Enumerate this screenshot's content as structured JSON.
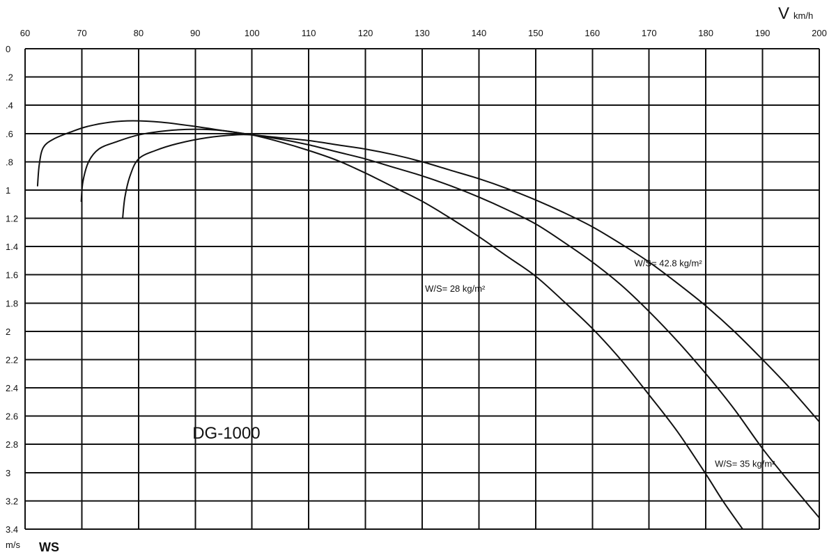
{
  "chart_data": {
    "type": "line",
    "title": "DG-1000",
    "xlabel": "V",
    "xunit": "km/h",
    "ylabel": "WS",
    "yunit": "m/s",
    "xlim": [
      60,
      200
    ],
    "ylim": [
      0,
      3.4
    ],
    "y_inverted": true,
    "grid": true,
    "x_ticks": [
      {
        "value": 60,
        "label": "60"
      },
      {
        "value": 70,
        "label": "70"
      },
      {
        "value": 80,
        "label": "80"
      },
      {
        "value": 90,
        "label": "90"
      },
      {
        "value": 100,
        "label": "100"
      },
      {
        "value": 110,
        "label": "110"
      },
      {
        "value": 120,
        "label": "120"
      },
      {
        "value": 130,
        "label": "130"
      },
      {
        "value": 140,
        "label": "140"
      },
      {
        "value": 150,
        "label": "150"
      },
      {
        "value": 160,
        "label": "160"
      },
      {
        "value": 170,
        "label": "170"
      },
      {
        "value": 180,
        "label": "180"
      },
      {
        "value": 190,
        "label": "190"
      },
      {
        "value": 200,
        "label": "200"
      }
    ],
    "y_ticks": [
      {
        "value": 0,
        "label": "0"
      },
      {
        "value": 0.2,
        "label": ".2"
      },
      {
        "value": 0.4,
        "label": ".4"
      },
      {
        "value": 0.6,
        "label": ".6"
      },
      {
        "value": 0.8,
        "label": ".8"
      },
      {
        "value": 1.0,
        "label": "1"
      },
      {
        "value": 1.2,
        "label": "1.2"
      },
      {
        "value": 1.4,
        "label": "1.4"
      },
      {
        "value": 1.6,
        "label": "1.6"
      },
      {
        "value": 1.8,
        "label": "1.8"
      },
      {
        "value": 2.0,
        "label": "2"
      },
      {
        "value": 2.2,
        "label": "2.2"
      },
      {
        "value": 2.4,
        "label": "2.4"
      },
      {
        "value": 2.6,
        "label": "2.6"
      },
      {
        "value": 2.8,
        "label": "2.8"
      },
      {
        "value": 3.0,
        "label": "3"
      },
      {
        "value": 3.2,
        "label": "3.2"
      },
      {
        "value": 3.4,
        "label": "3.4"
      }
    ],
    "series": [
      {
        "name": "W/S= 28 kg/m²",
        "points": [
          [
            62.2,
            0.97
          ],
          [
            62.5,
            0.82
          ],
          [
            63.2,
            0.7
          ],
          [
            65.0,
            0.64
          ],
          [
            68.0,
            0.59
          ],
          [
            71.0,
            0.55
          ],
          [
            75.0,
            0.52
          ],
          [
            79.0,
            0.51
          ],
          [
            84.0,
            0.52
          ],
          [
            90.0,
            0.55
          ],
          [
            95.0,
            0.58
          ],
          [
            100.0,
            0.61
          ],
          [
            105.0,
            0.66
          ],
          [
            110.0,
            0.72
          ],
          [
            115.0,
            0.79
          ],
          [
            120.0,
            0.88
          ],
          [
            125.0,
            0.98
          ],
          [
            130.0,
            1.08
          ],
          [
            135.0,
            1.2
          ],
          [
            140.0,
            1.33
          ],
          [
            145.0,
            1.47
          ],
          [
            150.0,
            1.61
          ],
          [
            155.0,
            1.79
          ],
          [
            160.0,
            1.98
          ],
          [
            165.0,
            2.2
          ],
          [
            170.0,
            2.45
          ],
          [
            175.0,
            2.71
          ],
          [
            180.0,
            3.01
          ],
          [
            183.0,
            3.2
          ],
          [
            186.5,
            3.4
          ]
        ]
      },
      {
        "name": "W/S= 35 kg/m²",
        "points": [
          [
            69.9,
            1.08
          ],
          [
            70.2,
            0.94
          ],
          [
            71.2,
            0.8
          ],
          [
            73.0,
            0.71
          ],
          [
            76.0,
            0.66
          ],
          [
            80.0,
            0.61
          ],
          [
            85.0,
            0.58
          ],
          [
            90.0,
            0.57
          ],
          [
            95.0,
            0.58
          ],
          [
            100.0,
            0.61
          ],
          [
            105.0,
            0.64
          ],
          [
            110.0,
            0.68
          ],
          [
            115.0,
            0.73
          ],
          [
            120.0,
            0.78
          ],
          [
            125.0,
            0.84
          ],
          [
            130.0,
            0.9
          ],
          [
            135.0,
            0.97
          ],
          [
            140.0,
            1.05
          ],
          [
            145.0,
            1.14
          ],
          [
            150.0,
            1.24
          ],
          [
            155.0,
            1.37
          ],
          [
            160.0,
            1.51
          ],
          [
            165.0,
            1.67
          ],
          [
            170.0,
            1.86
          ],
          [
            175.0,
            2.07
          ],
          [
            180.0,
            2.3
          ],
          [
            185.0,
            2.55
          ],
          [
            190.0,
            2.83
          ],
          [
            195.0,
            3.08
          ],
          [
            200.0,
            3.32
          ]
        ]
      },
      {
        "name": "W/S= 42.8 kg/m²",
        "points": [
          [
            77.2,
            1.2
          ],
          [
            77.6,
            1.05
          ],
          [
            78.5,
            0.9
          ],
          [
            80.0,
            0.78
          ],
          [
            83.0,
            0.72
          ],
          [
            87.0,
            0.67
          ],
          [
            92.0,
            0.63
          ],
          [
            97.0,
            0.61
          ],
          [
            100.0,
            0.61
          ],
          [
            105.0,
            0.63
          ],
          [
            110.0,
            0.65
          ],
          [
            115.0,
            0.68
          ],
          [
            120.0,
            0.71
          ],
          [
            125.0,
            0.75
          ],
          [
            130.0,
            0.8
          ],
          [
            135.0,
            0.86
          ],
          [
            140.0,
            0.92
          ],
          [
            145.0,
            0.99
          ],
          [
            150.0,
            1.07
          ],
          [
            155.0,
            1.16
          ],
          [
            160.0,
            1.26
          ],
          [
            165.0,
            1.38
          ],
          [
            170.0,
            1.51
          ],
          [
            175.0,
            1.66
          ],
          [
            180.0,
            1.82
          ],
          [
            185.0,
            2.0
          ],
          [
            190.0,
            2.2
          ],
          [
            195.0,
            2.41
          ],
          [
            200.0,
            2.64
          ]
        ]
      }
    ],
    "annotations": [
      {
        "text": "W/S= 28 kg/m²",
        "x": 130.5,
        "y": 1.72
      },
      {
        "text": "W/S= 35 kg/m²",
        "x": 181.6,
        "y": 2.96
      },
      {
        "text": "W/S= 42.8 kg/m²",
        "x": 167.4,
        "y": 1.54
      },
      {
        "text": "DG-1000",
        "x": 89.5,
        "y": 2.76
      }
    ]
  }
}
